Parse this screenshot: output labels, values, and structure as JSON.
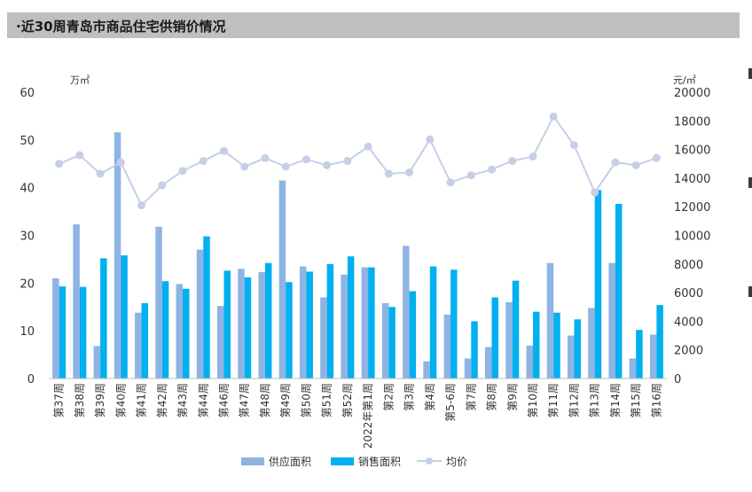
{
  "header": {
    "title": "·近30周青岛市商品住宅供销价情况"
  },
  "chart_data": {
    "type": "bar+line",
    "title": "近30周青岛市商品住宅供销价情况",
    "categories": [
      "第37周",
      "第38周",
      "第39周",
      "第40周",
      "第41周",
      "第42周",
      "第43周",
      "第44周",
      "第46周",
      "第47周",
      "第48周",
      "第49周",
      "第50周",
      "第51周",
      "第52周",
      "2022年第1周",
      "第2周",
      "第3周",
      "第4周",
      "第5-6周",
      "第7周",
      "第8周",
      "第9周",
      "第10周",
      "第11周",
      "第12周",
      "第13周",
      "第14周",
      "第15周",
      "第16周"
    ],
    "left_axis": {
      "unit": "万㎡",
      "ylim": [
        0,
        60
      ],
      "ticks": [
        "0",
        "10",
        "20",
        "30",
        "40",
        "50",
        "60"
      ]
    },
    "right_axis": {
      "unit": "元/㎡",
      "ylim": [
        0,
        20000
      ],
      "ticks": [
        "0",
        "2000",
        "4000",
        "6000",
        "8000",
        "10000",
        "12000",
        "14000",
        "16000",
        "18000",
        "20000"
      ]
    },
    "series": [
      {
        "name": "供应面积",
        "type": "bar",
        "axis": "left",
        "color": "#8eb4e3",
        "values": [
          21.0,
          32.3,
          6.8,
          51.6,
          13.8,
          31.8,
          19.8,
          27.0,
          15.2,
          23.0,
          22.3,
          41.5,
          23.5,
          17.0,
          21.8,
          23.3,
          15.8,
          27.8,
          3.6,
          13.4,
          4.2,
          6.6,
          16.0,
          6.9,
          24.2,
          9.0,
          14.8,
          24.2,
          4.2,
          9.2
        ]
      },
      {
        "name": "销售面积",
        "type": "bar",
        "axis": "right_is_left",
        "color": "#00b0f0",
        "values": [
          19.3,
          19.2,
          25.2,
          25.8,
          15.8,
          20.4,
          18.8,
          29.8,
          22.6,
          21.2,
          24.2,
          20.2,
          22.4,
          24.0,
          25.6,
          23.3,
          15.0,
          18.3,
          23.5,
          22.8,
          12.0,
          17.0,
          20.5,
          14.0,
          13.8,
          12.4,
          39.5,
          36.6,
          10.2,
          15.4
        ]
      },
      {
        "name": "均价",
        "type": "line",
        "axis": "right",
        "color": "#c5cfe6",
        "values": [
          15000,
          15600,
          14300,
          15100,
          12100,
          13500,
          14500,
          15200,
          15900,
          14800,
          15400,
          14800,
          15300,
          14900,
          15200,
          16200,
          14300,
          14400,
          16700,
          13700,
          14200,
          14600,
          15200,
          15500,
          18300,
          16300,
          13000,
          15100,
          14900,
          15400
        ]
      }
    ],
    "legend": [
      "供应面积",
      "销售面积",
      "均价"
    ]
  }
}
